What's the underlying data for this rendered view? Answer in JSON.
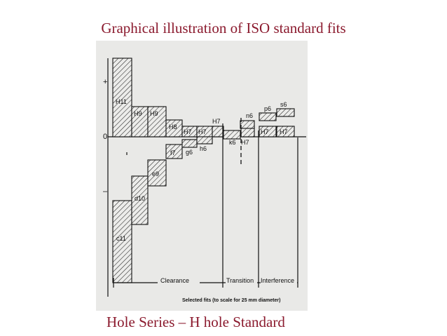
{
  "title": "Graphical illustration of ISO standard fits",
  "caption": "Hole Series – H hole Standard",
  "diagram": {
    "axis_plus": "+",
    "axis_minus": "–",
    "axis_zero": "0",
    "holes": [
      "H11",
      "H9",
      "H9",
      "H8",
      "H7",
      "H7",
      "H7",
      "H7",
      "H7",
      "H7"
    ],
    "shafts": [
      "c11",
      "d10",
      "e9",
      "f7",
      "g6",
      "h6",
      "k6",
      "n6",
      "p6",
      "s6"
    ],
    "zones": [
      "Clearance",
      "Transition",
      "Interference"
    ],
    "footnote": "Selected fits (to scale for 25 mm diameter)"
  },
  "colors": {
    "heading": "#8b1a2e",
    "paper": "#e9e9e7",
    "ink": "#111111"
  }
}
